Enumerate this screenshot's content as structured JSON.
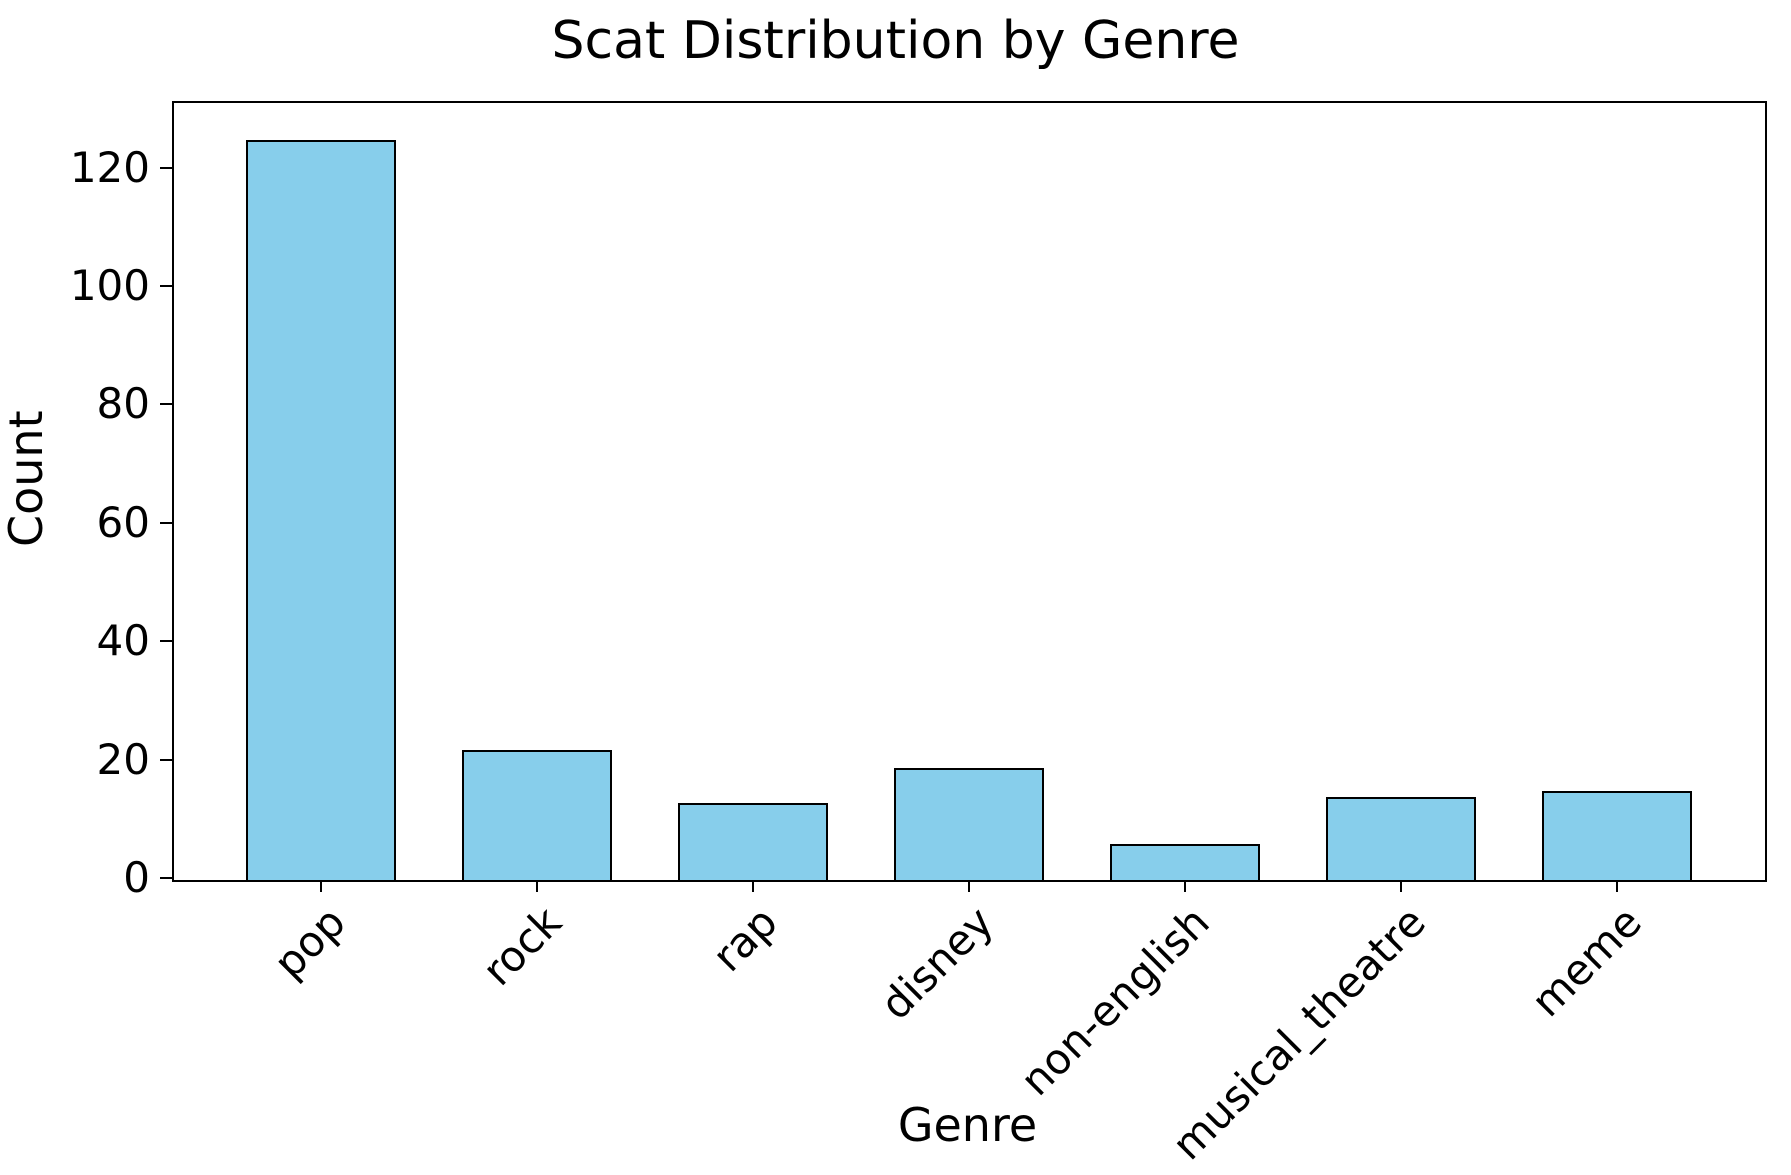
{
  "chart_data": {
    "type": "bar",
    "title": "Scat Distribution by Genre",
    "xlabel": "Genre",
    "ylabel": "Count",
    "categories": [
      "pop",
      "rock",
      "rap",
      "disney",
      "non-english",
      "musical_theatre",
      "meme"
    ],
    "values": [
      125,
      22,
      13,
      19,
      6,
      14,
      15
    ],
    "yticks": [
      0,
      20,
      40,
      60,
      80,
      100,
      120
    ],
    "ylim": [
      0,
      131.25
    ],
    "bar_fill_color": "#87CEEB",
    "bar_edge_color": "#000000",
    "grid": false,
    "legend": "none",
    "x_tick_label_rotation_deg": 45
  }
}
